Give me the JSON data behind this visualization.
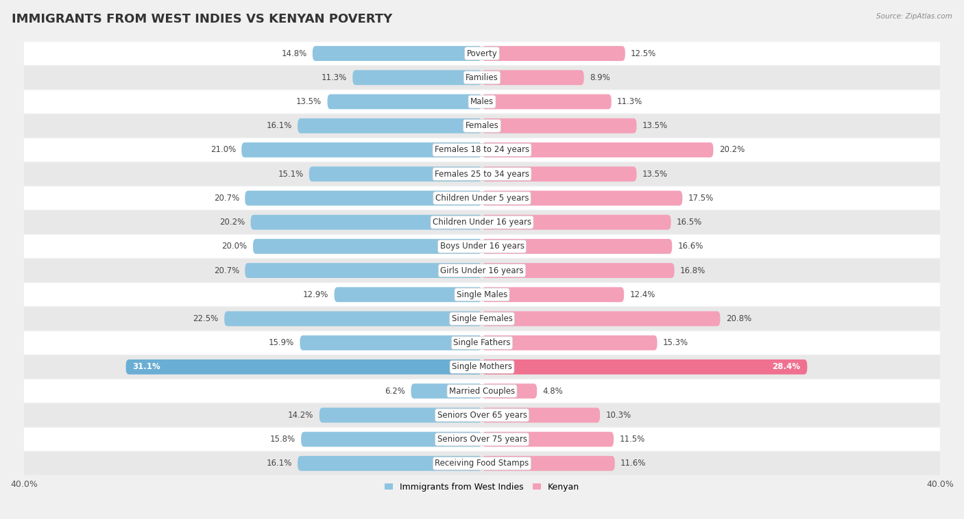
{
  "title": "IMMIGRANTS FROM WEST INDIES VS KENYAN POVERTY",
  "source": "Source: ZipAtlas.com",
  "categories": [
    "Poverty",
    "Families",
    "Males",
    "Females",
    "Females 18 to 24 years",
    "Females 25 to 34 years",
    "Children Under 5 years",
    "Children Under 16 years",
    "Boys Under 16 years",
    "Girls Under 16 years",
    "Single Males",
    "Single Females",
    "Single Fathers",
    "Single Mothers",
    "Married Couples",
    "Seniors Over 65 years",
    "Seniors Over 75 years",
    "Receiving Food Stamps"
  ],
  "west_indies_values": [
    14.8,
    11.3,
    13.5,
    16.1,
    21.0,
    15.1,
    20.7,
    20.2,
    20.0,
    20.7,
    12.9,
    22.5,
    15.9,
    31.1,
    6.2,
    14.2,
    15.8,
    16.1
  ],
  "kenyan_values": [
    12.5,
    8.9,
    11.3,
    13.5,
    20.2,
    13.5,
    17.5,
    16.5,
    16.6,
    16.8,
    12.4,
    20.8,
    15.3,
    28.4,
    4.8,
    10.3,
    11.5,
    11.6
  ],
  "west_indies_color": "#8EC4E0",
  "kenyan_color": "#F4A0B8",
  "west_indies_highlight_color": "#6AAED4",
  "kenyan_highlight_color": "#F07090",
  "highlight_index": 13,
  "xlim": 40.0,
  "bar_height": 0.62,
  "background_color": "#f0f0f0",
  "row_white_color": "#ffffff",
  "row_gray_color": "#e8e8e8",
  "legend_label_left": "Immigrants from West Indies",
  "legend_label_right": "Kenyan",
  "title_fontsize": 13,
  "label_fontsize": 8.5,
  "value_fontsize": 8.5,
  "axis_fontsize": 9
}
